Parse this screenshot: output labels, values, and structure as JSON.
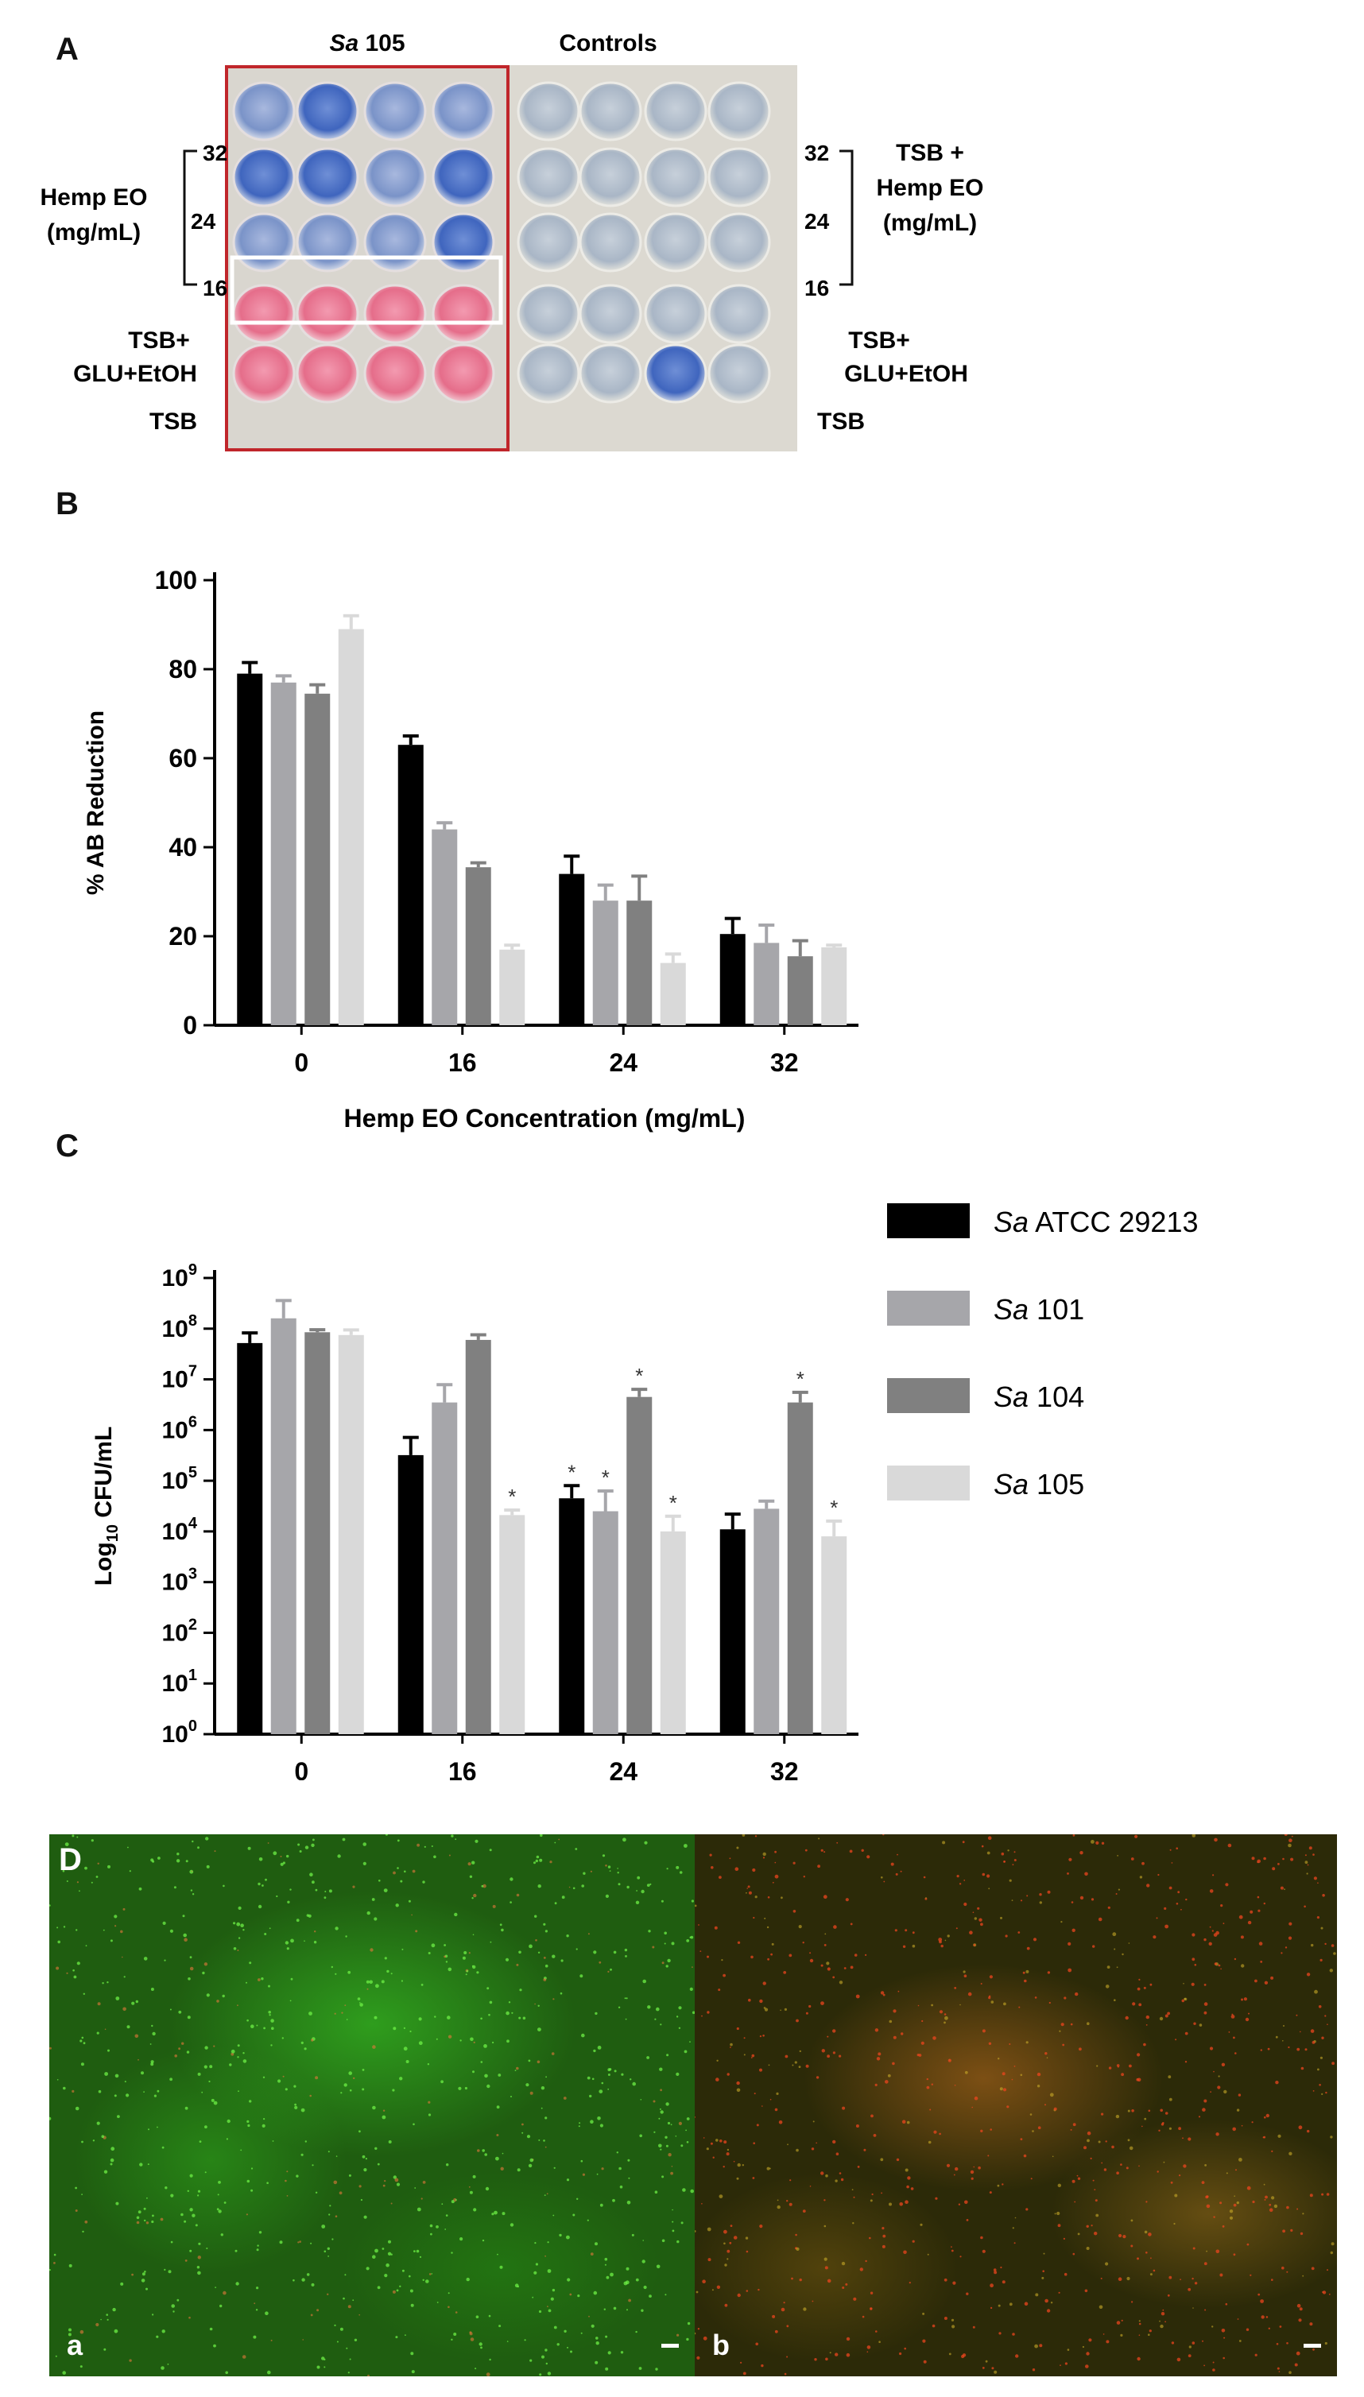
{
  "panel_labels": {
    "a": "A",
    "b": "B",
    "c": "C",
    "d": "D"
  },
  "panel_a": {
    "plate_left_title_italic": "Sa",
    "plate_left_title_rest": " 105",
    "plate_right_title": "Controls",
    "left_group_label_1": "Hemp EO",
    "left_group_label_2": "(mg/mL)",
    "left_row_nums": [
      "32",
      "24",
      "16"
    ],
    "left_tsb_glu_1": "TSB+",
    "left_tsb_glu_2": "GLU+EtOH",
    "left_tsb": "TSB",
    "right_row_nums": [
      "32",
      "24",
      "16"
    ],
    "right_group_label_1": "TSB +",
    "right_group_label_2": "Hemp EO",
    "right_group_label_3": "(mg/mL)",
    "right_tsb_glu_1": "TSB+",
    "right_tsb_glu_2": "GLU+EtOH",
    "right_tsb": "TSB",
    "colors": {
      "blue_well": "#4a74c8",
      "pink_well": "#e9748f",
      "frame_red": "#c0262b"
    }
  },
  "chart_data": [
    {
      "type": "bar",
      "id": "B",
      "categories": [
        "0",
        "16",
        "24",
        "32"
      ],
      "series": [
        {
          "name": "Sa ATCC 29213",
          "color": "#000000",
          "values": [
            79,
            63,
            34,
            20.5
          ],
          "errors": [
            2.5,
            2,
            4,
            3.5
          ]
        },
        {
          "name": "Sa 101",
          "color": "#a6a6aa",
          "values": [
            77,
            44,
            28,
            18.5
          ],
          "errors": [
            1.5,
            1.5,
            3.5,
            4
          ]
        },
        {
          "name": "Sa 104",
          "color": "#808080",
          "values": [
            74.5,
            35.5,
            28,
            15.5
          ],
          "errors": [
            2,
            1,
            5.5,
            3.5
          ]
        },
        {
          "name": "Sa 105",
          "color": "#d9d9d9",
          "values": [
            89,
            17,
            14,
            17.5
          ],
          "errors": [
            3,
            1,
            2,
            0.5
          ]
        }
      ],
      "ylim": [
        0,
        100
      ],
      "yticks": [
        "0",
        "20",
        "40",
        "60",
        "80",
        "100"
      ],
      "ylabel": "% AB Reduction",
      "xlabel": "Hemp EO Concentration  (mg/mL)"
    },
    {
      "type": "bar",
      "id": "C",
      "scale": "log10",
      "categories": [
        "0",
        "16",
        "24",
        "32"
      ],
      "series": [
        {
          "name": "Sa ATCC 29213",
          "color": "#000000",
          "values": [
            52000000.0,
            320000.0,
            45000.0,
            11000.0
          ],
          "err_log": [
            0.2,
            0.35,
            0.25,
            0.3
          ],
          "sig": [
            false,
            false,
            true,
            false
          ]
        },
        {
          "name": "Sa 101",
          "color": "#a6a6aa",
          "values": [
            160000000.0,
            3500000.0,
            25000.0,
            28000.0
          ],
          "err_log": [
            0.35,
            0.35,
            0.4,
            0.15
          ],
          "sig": [
            false,
            false,
            true,
            false
          ]
        },
        {
          "name": "Sa 104",
          "color": "#808080",
          "values": [
            85000000.0,
            60000000.0,
            4500000.0,
            3500000.0
          ],
          "err_log": [
            0.05,
            0.1,
            0.15,
            0.2
          ],
          "sig": [
            false,
            false,
            true,
            true
          ]
        },
        {
          "name": "Sa 105",
          "color": "#d9d9d9",
          "values": [
            75000000.0,
            21000.0,
            10000.0,
            8000.0
          ],
          "err_log": [
            0.1,
            0.1,
            0.3,
            0.3
          ],
          "sig": [
            false,
            true,
            true,
            true
          ]
        }
      ],
      "ylim_exp": [
        0,
        9
      ],
      "ytick_base": "10",
      "yticks_exp": [
        "0",
        "1",
        "2",
        "3",
        "4",
        "5",
        "6",
        "7",
        "8",
        "9"
      ],
      "ylabel_prefix": "Log",
      "ylabel_sub": "10",
      "ylabel_suffix": " CFU/mL",
      "xlabel": "Hemp EO Concentration  (mg/mL)",
      "sig_marker": "*"
    }
  ],
  "legend": {
    "items": [
      {
        "italic": "Sa",
        "rest": " ATCC 29213",
        "color": "#000000"
      },
      {
        "italic": "Sa",
        "rest": " 101",
        "color": "#a6a6aa"
      },
      {
        "italic": "Sa",
        "rest": " 104",
        "color": "#808080"
      },
      {
        "italic": "Sa",
        "rest": " 105",
        "color": "#d9d9d9"
      }
    ]
  },
  "panel_d": {
    "sub_a": "a",
    "sub_b": "b",
    "colors": {
      "green": "#33c81e",
      "orange": "#c0661a"
    }
  }
}
